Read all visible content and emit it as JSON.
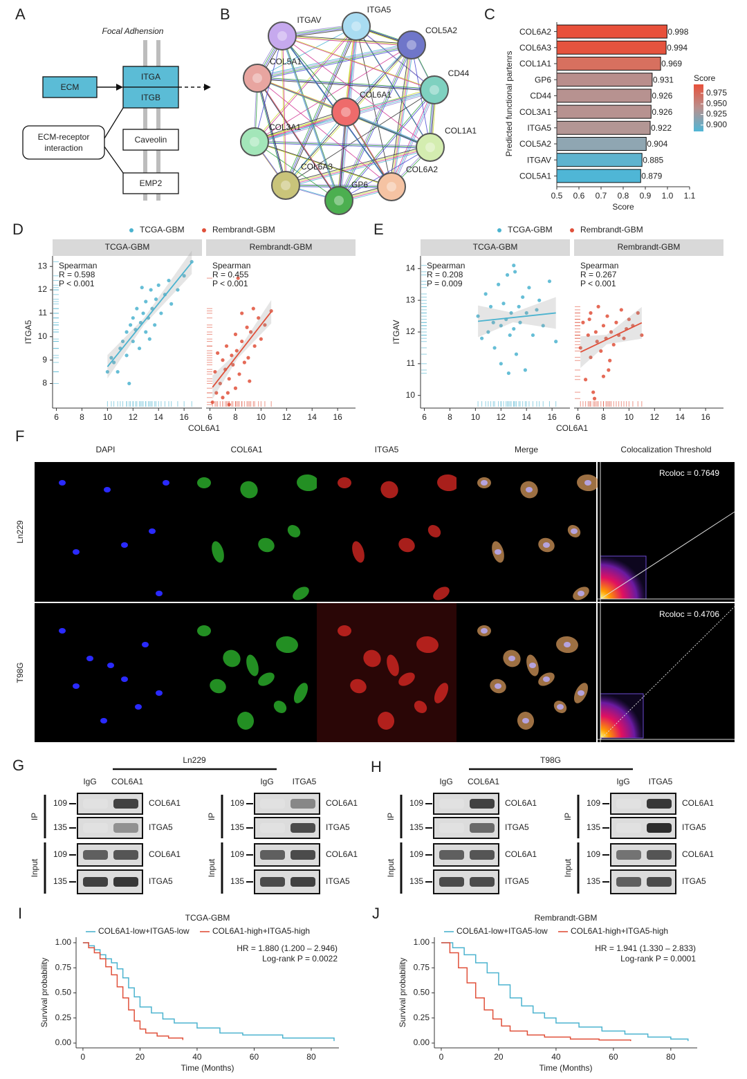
{
  "panel_labels": [
    "A",
    "B",
    "C",
    "D",
    "E",
    "F",
    "G",
    "H",
    "I",
    "J"
  ],
  "diagram": {
    "title": "Focal Adhension",
    "ecm": "ECM",
    "integrins": [
      "ITGA",
      "ITGB"
    ],
    "pathway": [
      "ECM-receptor",
      "interaction"
    ],
    "partners": [
      "Caveolin",
      "EMP2"
    ]
  },
  "network": {
    "nodes": [
      {
        "label": "ITGA5",
        "color": "#a9dcf2"
      },
      {
        "label": "COL5A2",
        "color": "#6f76c9"
      },
      {
        "label": "CD44",
        "color": "#7fd1c0"
      },
      {
        "label": "COL1A1",
        "color": "#d4edb0"
      },
      {
        "label": "COL6A2",
        "color": "#f5c3a3"
      },
      {
        "label": "GP6",
        "color": "#4caf50"
      },
      {
        "label": "COL6A3",
        "color": "#c9c47a"
      },
      {
        "label": "COL3A1",
        "color": "#a3e6b9"
      },
      {
        "label": "COL5A1",
        "color": "#e8a5a0"
      },
      {
        "label": "ITGAV",
        "color": "#c6a9ee"
      },
      {
        "label": "COL6A1",
        "color": "#ee6b6b"
      }
    ]
  },
  "chart_data": [
    {
      "type": "hbar",
      "ylabel": "Predicted functional partenrs",
      "xlabel": "Score",
      "categories": [
        "COL6A2",
        "COL6A3",
        "COL1A1",
        "GP6",
        "CD44",
        "COL3A1",
        "ITGA5",
        "COL5A2",
        "ITGAV",
        "COL5A1"
      ],
      "values": [
        0.998,
        0.994,
        0.969,
        0.931,
        0.926,
        0.926,
        0.922,
        0.904,
        0.885,
        0.879
      ],
      "colors": [
        "#e8503a",
        "#e5533e",
        "#d7705f",
        "#b98e8c",
        "#b79290",
        "#b79290",
        "#b39694",
        "#8fa6b2",
        "#5eb3cf",
        "#4fb6d6"
      ],
      "xlim": [
        0.5,
        1.1
      ],
      "xticks": [
        0.5,
        0.6,
        0.7,
        0.8,
        0.9,
        {
          "value": 1,
          "label": "1.0"
        },
        1.1
      ],
      "legend_title": "Score",
      "colorlim": [
        0.885,
        0.996
      ],
      "colorbar_colors": [
        "#e8503a",
        "#b8908e",
        "#4fb6d6"
      ],
      "colorticks": [
        0.975,
        {
          "value": 0.95,
          "label": "0.950"
        },
        0.925,
        {
          "value": 0.9,
          "label": "0.900"
        }
      ]
    },
    {
      "type": "scatter",
      "xlabel": "COL6A1",
      "ylabel": "ITGA5",
      "xlim": [
        5.7,
        17.4
      ],
      "ylim": [
        6.95,
        13.45
      ],
      "xticks": [
        6,
        8,
        10,
        12,
        14,
        16
      ],
      "yticks": [
        8,
        9,
        10,
        11,
        12,
        13
      ],
      "series": [
        {
          "name": "TCGA-GBM",
          "color": "#4bb3cf",
          "annotations": [
            "Spearman",
            "R = 0.598",
            "P < 0.001"
          ],
          "x": [
            10,
            10.3,
            10.5,
            10.8,
            11,
            11.2,
            11.5,
            11.5,
            11.7,
            11.8,
            12,
            12,
            12.2,
            12.3,
            12.5,
            12.6,
            12.7,
            12.8,
            13,
            13,
            13.2,
            13.3,
            13.4,
            13.5,
            13.7,
            13.8,
            14,
            14.2,
            14.5,
            14.8,
            15,
            15.5,
            16,
            16.6
          ],
          "values": [
            8.5,
            9.1,
            8.9,
            8.5,
            9.5,
            9.8,
            10.2,
            9.2,
            8,
            10.5,
            9.8,
            10.8,
            10.3,
            11.2,
            9.5,
            10.6,
            12.1,
            11,
            10.2,
            11.5,
            10.8,
            9.9,
            12,
            11.2,
            10.5,
            11.6,
            12.2,
            11,
            11.8,
            12.4,
            11.4,
            12,
            12.6,
            13.2
          ]
        },
        {
          "name": "Rembrandt-GBM",
          "color": "#e0503a",
          "annotations": [
            "Spearman",
            "R = 0.455",
            "P < 0.001"
          ],
          "x": [
            6.2,
            6.4,
            6.5,
            6.8,
            7,
            7,
            7.2,
            7.3,
            7.5,
            7.5,
            7.7,
            7.8,
            8,
            8,
            8.1,
            8.3,
            8.5,
            8.5,
            8.7,
            8.9,
            9,
            9.2,
            9.4,
            9.5,
            9.8,
            10,
            10.3,
            10.8,
            8.2,
            7.4,
            6.6,
            9.1
          ],
          "values": [
            7.2,
            8.5,
            7.6,
            8,
            9,
            7.4,
            8.6,
            9.6,
            8.2,
            7.1,
            9.2,
            8.8,
            10.1,
            7.8,
            9.4,
            8.4,
            9.8,
            11,
            8.9,
            10.4,
            9.1,
            10.2,
            11.2,
            9.6,
            10.8,
            9.9,
            10.5,
            11.1,
            12.5,
            7.6,
            9.3,
            8.1
          ]
        }
      ]
    },
    {
      "type": "scatter",
      "xlabel": "COL6A1",
      "ylabel": "ITGAV",
      "xlim": [
        5.7,
        17.4
      ],
      "ylim": [
        9.6,
        14.4
      ],
      "xticks": [
        6,
        8,
        10,
        12,
        14,
        16
      ],
      "yticks": [
        10,
        11,
        12,
        13,
        14
      ],
      "series": [
        {
          "name": "TCGA-GBM",
          "color": "#4bb3cf",
          "annotations": [
            "Spearman",
            "R = 0.208",
            "P = 0.009"
          ],
          "x": [
            10.2,
            10.5,
            10.8,
            11,
            11.2,
            11.5,
            11.8,
            12,
            12,
            12.2,
            12.4,
            12.5,
            12.7,
            12.8,
            13,
            13,
            13.2,
            13.4,
            13.5,
            13.7,
            13.9,
            14,
            14.2,
            14.5,
            14.8,
            15,
            15.3,
            15.8,
            16.3,
            12.6,
            11.4,
            13.1
          ],
          "values": [
            12.5,
            11.8,
            13.2,
            12,
            12.8,
            11.5,
            13.5,
            12.2,
            11,
            12.9,
            12.4,
            13.8,
            11.9,
            12.6,
            12.1,
            14.1,
            11.3,
            12.8,
            12.3,
            13.1,
            10.8,
            12.6,
            13.4,
            11.9,
            12.7,
            13,
            12.2,
            13.6,
            11.7,
            10.7,
            12.3,
            13.9
          ]
        },
        {
          "name": "Rembrandt-GBM",
          "color": "#e0503a",
          "annotations": [
            "Spearman",
            "R = 0.267",
            "P < 0.001"
          ],
          "x": [
            6.2,
            6.4,
            6.6,
            6.8,
            7,
            7,
            7.2,
            7.4,
            7.5,
            7.6,
            7.8,
            8,
            8,
            8.2,
            8.3,
            8.5,
            8.6,
            8.8,
            9,
            9.2,
            9.4,
            9.6,
            9.8,
            10,
            10.3,
            10.7,
            11,
            7.3,
            6.9,
            8.4
          ],
          "values": [
            11.5,
            12.3,
            10.5,
            11.9,
            12.6,
            11.2,
            10.1,
            12,
            11.7,
            12.8,
            11.4,
            12.2,
            10.6,
            11.8,
            12.5,
            11.1,
            12,
            11.6,
            12.3,
            11.9,
            12.7,
            11.8,
            12.1,
            12.4,
            12.2,
            12.6,
            11.9,
            9.9,
            12.4,
            10.8
          ]
        }
      ]
    },
    {
      "type": "survival",
      "title": "TCGA-GBM",
      "xlabel": "Time (Months)",
      "ylabel": "Survival probability",
      "annotations": [
        "HR = 1.880 (1.200 – 2.946)",
        "Log-rank P = 0.0022"
      ],
      "xlim": [
        -2.4,
        89.7
      ],
      "ylim": [
        -0.048,
        1.055
      ],
      "xticks": [
        0,
        20,
        40,
        60,
        80
      ],
      "yticks": [
        {
          "value": 0,
          "label": "0.00"
        },
        {
          "value": 0.25,
          "label": "0.25"
        },
        {
          "value": 0.5,
          "label": "0.50"
        },
        {
          "value": 0.75,
          "label": "0.75"
        },
        {
          "value": 1,
          "label": "1.00"
        }
      ],
      "series": [
        {
          "name": "COL6A1-low+ITGA5-low",
          "color": "#4bb3cf",
          "x": [
            0,
            2,
            4,
            6,
            8,
            10,
            12,
            14,
            16,
            18,
            20,
            24,
            28,
            32,
            40,
            48,
            56,
            70,
            88
          ],
          "values": [
            1,
            0.97,
            0.93,
            0.88,
            0.84,
            0.8,
            0.74,
            0.65,
            0.55,
            0.46,
            0.36,
            0.3,
            0.24,
            0.2,
            0.15,
            0.1,
            0.08,
            0.05,
            0.02
          ]
        },
        {
          "name": "COL6A1-high+ITGA5-high",
          "color": "#e0503a",
          "x": [
            0,
            2,
            4,
            6,
            8,
            10,
            12,
            14,
            16,
            18,
            20,
            22,
            26,
            30,
            35
          ],
          "values": [
            1,
            0.95,
            0.9,
            0.84,
            0.76,
            0.68,
            0.56,
            0.45,
            0.33,
            0.22,
            0.14,
            0.1,
            0.07,
            0.05,
            0.03
          ]
        }
      ]
    },
    {
      "type": "survival",
      "title": "Rembrandt-GBM",
      "xlabel": "Time (Months)",
      "ylabel": "Survival probability",
      "annotations": [
        "HR = 1.941 (1.330 – 2.833)",
        "Log-rank P = 0.0001"
      ],
      "xlim": [
        -2.4,
        89.2
      ],
      "ylim": [
        -0.048,
        1.055
      ],
      "xticks": [
        0,
        20,
        40,
        60,
        80
      ],
      "yticks": [
        {
          "value": 0,
          "label": "0.00"
        },
        {
          "value": 0.25,
          "label": "0.25"
        },
        {
          "value": 0.5,
          "label": "0.50"
        },
        {
          "value": 0.75,
          "label": "0.75"
        },
        {
          "value": 1,
          "label": "1.00"
        }
      ],
      "series": [
        {
          "name": "COL6A1-low+ITGA5-low",
          "color": "#4bb3cf",
          "x": [
            0,
            4,
            8,
            12,
            16,
            20,
            24,
            28,
            32,
            36,
            40,
            48,
            56,
            64,
            72,
            80,
            86
          ],
          "values": [
            1,
            0.95,
            0.88,
            0.8,
            0.7,
            0.58,
            0.45,
            0.37,
            0.3,
            0.25,
            0.2,
            0.16,
            0.12,
            0.09,
            0.06,
            0.04,
            0.02
          ]
        },
        {
          "name": "COL6A1-high+ITGA5-high",
          "color": "#e0503a",
          "x": [
            0,
            3,
            6,
            9,
            12,
            15,
            18,
            21,
            24,
            30,
            36,
            45,
            55,
            66
          ],
          "values": [
            1,
            0.9,
            0.75,
            0.6,
            0.45,
            0.33,
            0.24,
            0.17,
            0.12,
            0.08,
            0.06,
            0.04,
            0.03,
            0.02
          ]
        }
      ]
    }
  ],
  "microscopy": {
    "channels": [
      "DAPI",
      "COL6A1",
      "ITGA5",
      "Merge",
      "Colocalization Threshold"
    ],
    "rows": [
      {
        "label": "Ln229",
        "rcoloc": "Rcoloc = 0.7649"
      },
      {
        "label": "T98G",
        "rcoloc": "Rcoloc = 0.4706"
      }
    ]
  },
  "western": {
    "sections": [
      "IP",
      "Input"
    ],
    "markers": [
      109,
      135
    ],
    "proteins": [
      "COL6A1",
      "ITGA5"
    ],
    "blots": [
      {
        "cell": "Ln229",
        "groups": [
          {
            "lanes": [
              "IgG",
              "COL6A1"
            ]
          },
          {
            "lanes": [
              "IgG",
              "ITGA5"
            ]
          }
        ]
      },
      {
        "cell": "T98G",
        "groups": [
          {
            "lanes": [
              "IgG",
              "COL6A1"
            ]
          },
          {
            "lanes": [
              "IgG",
              "ITGA5"
            ]
          }
        ]
      }
    ]
  }
}
